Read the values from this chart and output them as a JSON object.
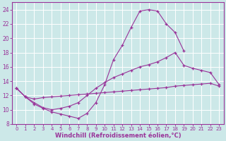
{
  "xlabel": "Windchill (Refroidissement éolien,°C)",
  "bg_color": "#cce8e8",
  "grid_color": "#ffffff",
  "line_color": "#993399",
  "xlim": [
    -0.5,
    23.5
  ],
  "ylim": [
    8,
    25
  ],
  "xticks": [
    0,
    1,
    2,
    3,
    4,
    5,
    6,
    7,
    8,
    9,
    10,
    11,
    12,
    13,
    14,
    15,
    16,
    17,
    18,
    19,
    20,
    21,
    22,
    23
  ],
  "yticks": [
    8,
    10,
    12,
    14,
    16,
    18,
    20,
    22,
    24
  ],
  "line1_x": [
    0,
    1,
    2,
    3,
    4,
    5,
    6,
    7,
    8,
    9,
    10,
    11,
    12,
    13,
    14,
    15,
    16,
    17,
    18,
    19
  ],
  "line1_y": [
    13.0,
    11.8,
    10.8,
    10.2,
    9.7,
    9.4,
    9.1,
    8.8,
    9.5,
    11.0,
    13.5,
    17.0,
    19.0,
    21.5,
    23.8,
    24.0,
    23.8,
    22.0,
    20.8,
    18.2
  ],
  "line2_x": [
    0,
    1,
    2,
    3,
    4,
    5,
    6,
    7,
    8,
    9,
    10,
    11,
    12,
    13,
    14,
    15,
    16,
    17,
    18,
    19,
    20,
    21,
    22,
    23
  ],
  "line2_y": [
    13.0,
    11.8,
    11.0,
    10.3,
    10.0,
    10.2,
    10.5,
    11.0,
    12.0,
    13.0,
    13.8,
    14.5,
    15.0,
    15.5,
    16.0,
    16.3,
    16.7,
    17.3,
    18.0,
    16.2,
    15.8,
    15.5,
    15.2,
    13.5
  ],
  "line3_x": [
    0,
    1,
    2,
    3,
    4,
    5,
    6,
    7,
    8,
    9,
    10,
    11,
    12,
    13,
    14,
    15,
    16,
    17,
    18,
    19,
    20,
    21,
    22,
    23
  ],
  "line3_y": [
    13.0,
    11.8,
    11.5,
    11.7,
    11.8,
    11.9,
    12.0,
    12.1,
    12.2,
    12.3,
    12.4,
    12.5,
    12.6,
    12.7,
    12.8,
    12.9,
    13.0,
    13.1,
    13.3,
    13.4,
    13.5,
    13.6,
    13.7,
    13.3
  ]
}
